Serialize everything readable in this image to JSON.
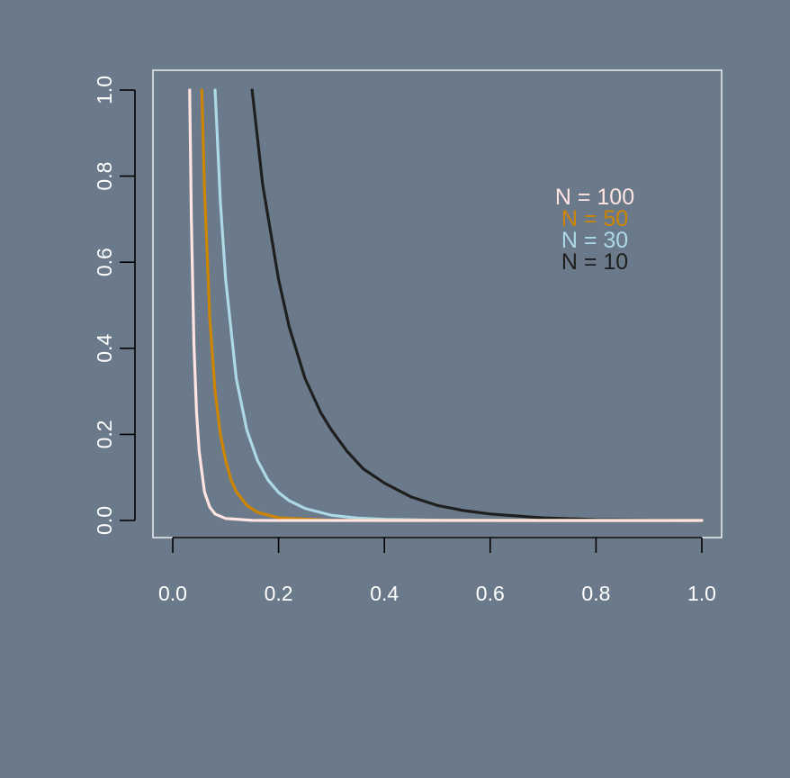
{
  "colors": {
    "background": "#6b7a8a",
    "axis": "#000000",
    "box": "#ffffff",
    "tick_label": "#ffffff"
  },
  "chart_data": {
    "type": "line",
    "title": "",
    "xlabel": "",
    "ylabel": "",
    "xlim": [
      0,
      1
    ],
    "ylim": [
      0,
      1
    ],
    "x_ticks": [
      "0.0",
      "0.2",
      "0.4",
      "0.6",
      "0.8",
      "1.0"
    ],
    "y_ticks": [
      "0.0",
      "0.2",
      "0.4",
      "0.6",
      "0.8",
      "1.0"
    ],
    "grid": false,
    "legend_position": "top-right",
    "series": [
      {
        "name": "N = 100",
        "color": "#ffe4e1",
        "x": [
          0.032,
          0.035,
          0.04,
          0.045,
          0.05,
          0.06,
          0.07,
          0.08,
          0.1,
          0.15,
          0.2,
          0.4,
          0.6,
          0.8,
          1.0
        ],
        "y": [
          1.0,
          0.71,
          0.41,
          0.25,
          0.16,
          0.066,
          0.031,
          0.015,
          0.0046,
          0.0003,
          0.0,
          0.0,
          0.0,
          0.0,
          0.0
        ]
      },
      {
        "name": "N = 50",
        "color": "#cd8500",
        "x": [
          0.055,
          0.06,
          0.07,
          0.08,
          0.09,
          0.1,
          0.11,
          0.12,
          0.14,
          0.16,
          0.2,
          0.3,
          0.4,
          0.6,
          0.8,
          1.0
        ],
        "y": [
          1.0,
          0.77,
          0.47,
          0.3,
          0.2,
          0.14,
          0.095,
          0.067,
          0.035,
          0.019,
          0.0062,
          0.0004,
          0.0,
          0.0,
          0.0,
          0.0
        ]
      },
      {
        "name": "N = 30",
        "color": "#add8e6",
        "x": [
          0.08,
          0.09,
          0.1,
          0.12,
          0.14,
          0.16,
          0.18,
          0.2,
          0.22,
          0.25,
          0.3,
          0.35,
          0.4,
          0.5,
          0.6,
          0.8,
          1.0
        ],
        "y": [
          1.0,
          0.74,
          0.56,
          0.33,
          0.21,
          0.14,
          0.094,
          0.065,
          0.046,
          0.028,
          0.012,
          0.0055,
          0.0026,
          0.0006,
          0.0001,
          0.0,
          0.0
        ]
      },
      {
        "name": "N = 10",
        "color": "#1f1f1f",
        "x": [
          0.15,
          0.17,
          0.2,
          0.22,
          0.25,
          0.28,
          0.3,
          0.33,
          0.36,
          0.4,
          0.45,
          0.5,
          0.55,
          0.6,
          0.7,
          0.8,
          1.0
        ],
        "y": [
          1.0,
          0.78,
          0.56,
          0.45,
          0.33,
          0.25,
          0.21,
          0.16,
          0.12,
          0.087,
          0.055,
          0.035,
          0.023,
          0.015,
          0.006,
          0.002,
          0.0
        ]
      }
    ]
  }
}
